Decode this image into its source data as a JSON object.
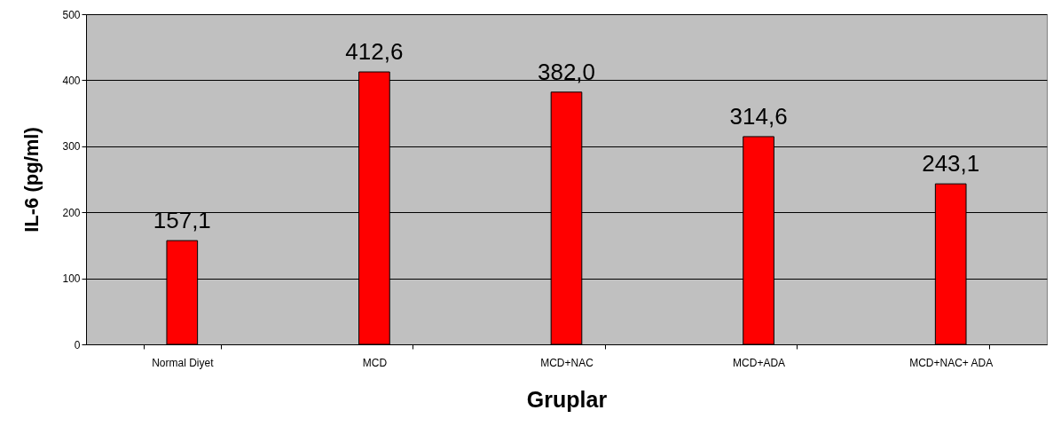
{
  "chart_data": {
    "type": "bar",
    "xlabel": "Gruplar",
    "ylabel": "IL-6 (pg/ml)",
    "categories": [
      "Normal Diyet",
      "MCD",
      "MCD+NAC",
      "MCD+ADA",
      "MCD+NAC+ ADA"
    ],
    "values": [
      157.1,
      412.6,
      382.0,
      314.6,
      243.1
    ],
    "value_labels": [
      "157,1",
      "412,6",
      "382,0",
      "314,6",
      "243,1"
    ],
    "color": "#ff0000",
    "ylim": [
      0,
      500
    ],
    "yticks": [
      0,
      100,
      200,
      300,
      400,
      500
    ],
    "grid": "y"
  }
}
